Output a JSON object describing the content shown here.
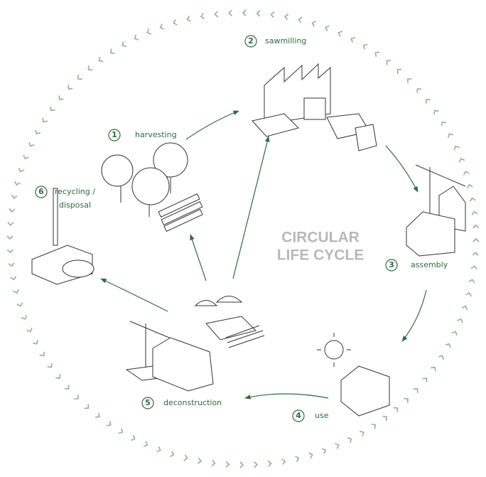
{
  "title": {
    "lines": [
      "CIRCULAR",
      "LIFE CYCLE"
    ]
  },
  "stages": [
    {
      "number": "1",
      "label": [
        "harvesting"
      ]
    },
    {
      "number": "2",
      "label": [
        "sawmilling"
      ]
    },
    {
      "number": "3",
      "label": [
        "assembly"
      ]
    },
    {
      "number": "4",
      "label": [
        "use"
      ]
    },
    {
      "number": "5",
      "label": [
        "deconstruction"
      ]
    },
    {
      "number": "6",
      "label": [
        "recycling /",
        "disposal"
      ]
    }
  ]
}
